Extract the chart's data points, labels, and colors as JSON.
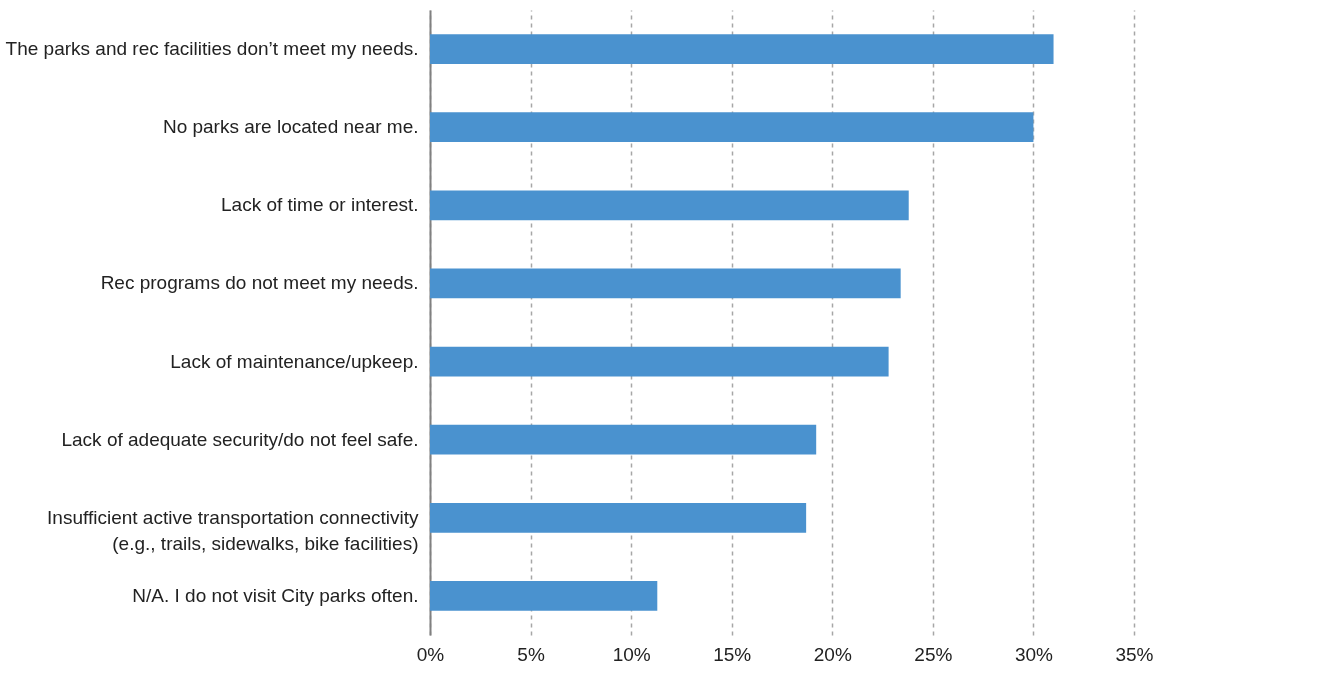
{
  "chart_data": {
    "type": "bar",
    "orientation": "horizontal",
    "categories": [
      "The parks and rec facilities don’t meet my needs.",
      "No parks are located near me.",
      "Lack of time or interest.",
      "Rec programs do not meet my needs.",
      "Lack of maintenance/upkeep.",
      "Lack of adequate security/do not feel safe.",
      "Insufficient active transportation connectivity\n(e.g., trails, sidewalks, bike facilities)",
      "N/A. I do not visit City parks often."
    ],
    "values": [
      31.0,
      30.0,
      23.8,
      23.4,
      22.8,
      19.2,
      18.7,
      11.3
    ],
    "color": "#4a92cf",
    "xlim": [
      0,
      35
    ],
    "xticks": [
      {
        "value": 0,
        "label": "0%"
      },
      {
        "value": 5,
        "label": "5%"
      },
      {
        "value": 10,
        "label": "10%"
      },
      {
        "value": 15,
        "label": "15%"
      },
      {
        "value": 20,
        "label": "20%"
      },
      {
        "value": 25,
        "label": "25%"
      },
      {
        "value": 30,
        "label": "30%"
      },
      {
        "value": 35,
        "label": "35%"
      }
    ],
    "grid": "x"
  }
}
